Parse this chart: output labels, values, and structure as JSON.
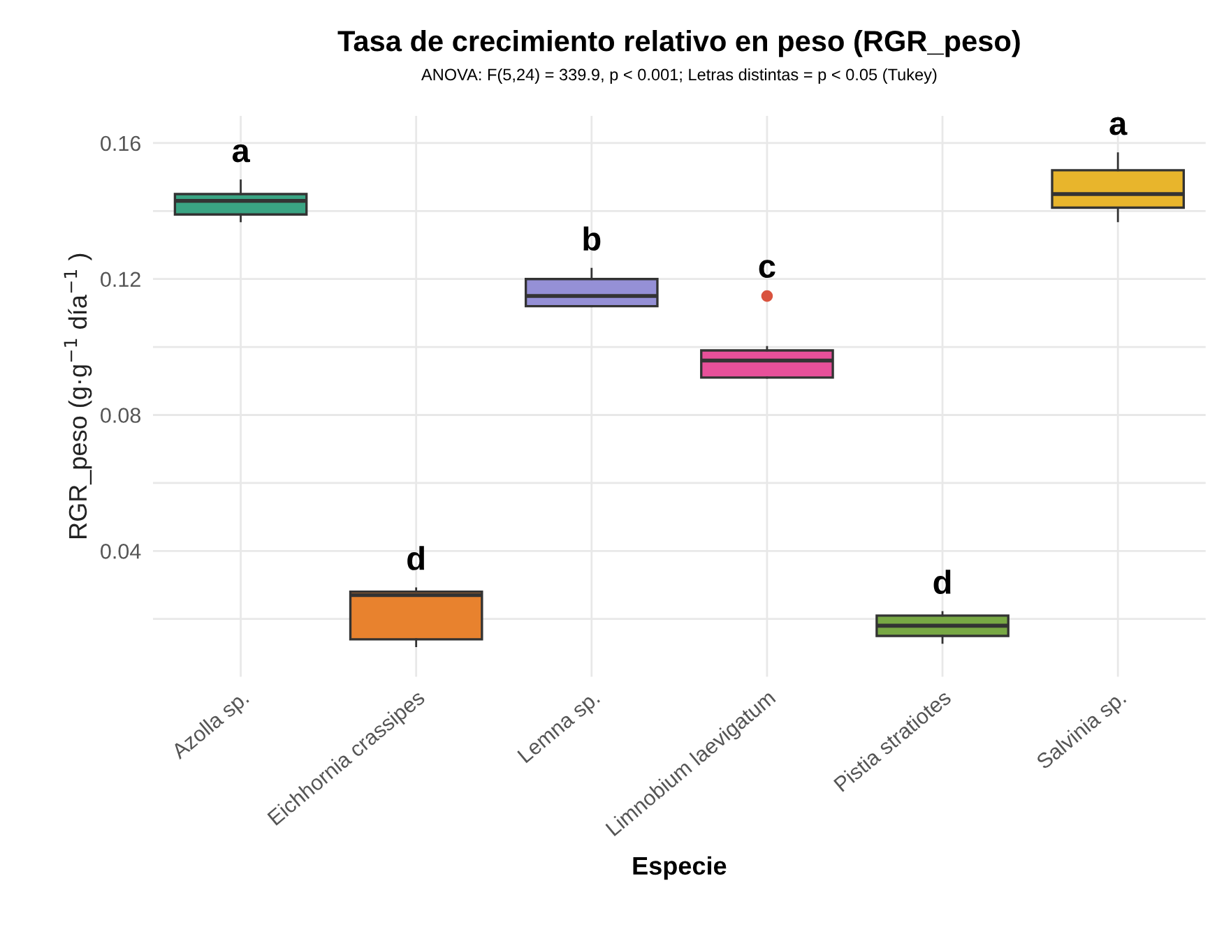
{
  "chart_data": {
    "type": "box",
    "title": "Tasa de crecimiento relativo en peso (RGR_peso)",
    "subtitle": "ANOVA: F(5,24) = 339.9, p < 0.001; Letras distintas = p < 0.05 (Tukey)",
    "xlabel": "Especie",
    "ylabel": "RGR_peso (g·g$^{−1}$ día$^{−1}$ )",
    "categories": [
      "Azolla sp.",
      "Eichhornia crassipes",
      "Lemna sp.",
      "Limnobium laevigatum",
      "Pistia stratiotes",
      "Salvinia sp."
    ],
    "colors": [
      "#3aa483",
      "#e8822e",
      "#9590d6",
      "#e8509a",
      "#78a844",
      "#e8b52c"
    ],
    "boxes": [
      {
        "low": 0.137,
        "q1": 0.139,
        "median": 0.143,
        "q3": 0.145,
        "high": 0.149
      },
      {
        "low": 0.012,
        "q1": 0.014,
        "median": 0.027,
        "q3": 0.028,
        "high": 0.029
      },
      {
        "low": 0.112,
        "q1": 0.112,
        "median": 0.115,
        "q3": 0.12,
        "high": 0.123
      },
      {
        "low": 0.091,
        "q1": 0.091,
        "median": 0.096,
        "q3": 0.099,
        "high": 0.1,
        "outliers": [
          0.115
        ]
      },
      {
        "low": 0.013,
        "q1": 0.015,
        "median": 0.018,
        "q3": 0.021,
        "high": 0.022
      },
      {
        "low": 0.137,
        "q1": 0.141,
        "median": 0.145,
        "q3": 0.152,
        "high": 0.157
      }
    ],
    "annotations": [
      "a",
      "d",
      "b",
      "c",
      "d",
      "a"
    ],
    "ylim": [
      0.003,
      0.168
    ],
    "yticks": [
      {
        "value": 0.02,
        "label": null
      },
      0.04,
      {
        "value": 0.06,
        "label": null
      },
      0.08,
      {
        "value": 0.1,
        "label": null
      },
      0.12,
      {
        "value": 0.14,
        "label": null
      },
      0.16
    ],
    "grid": true
  }
}
